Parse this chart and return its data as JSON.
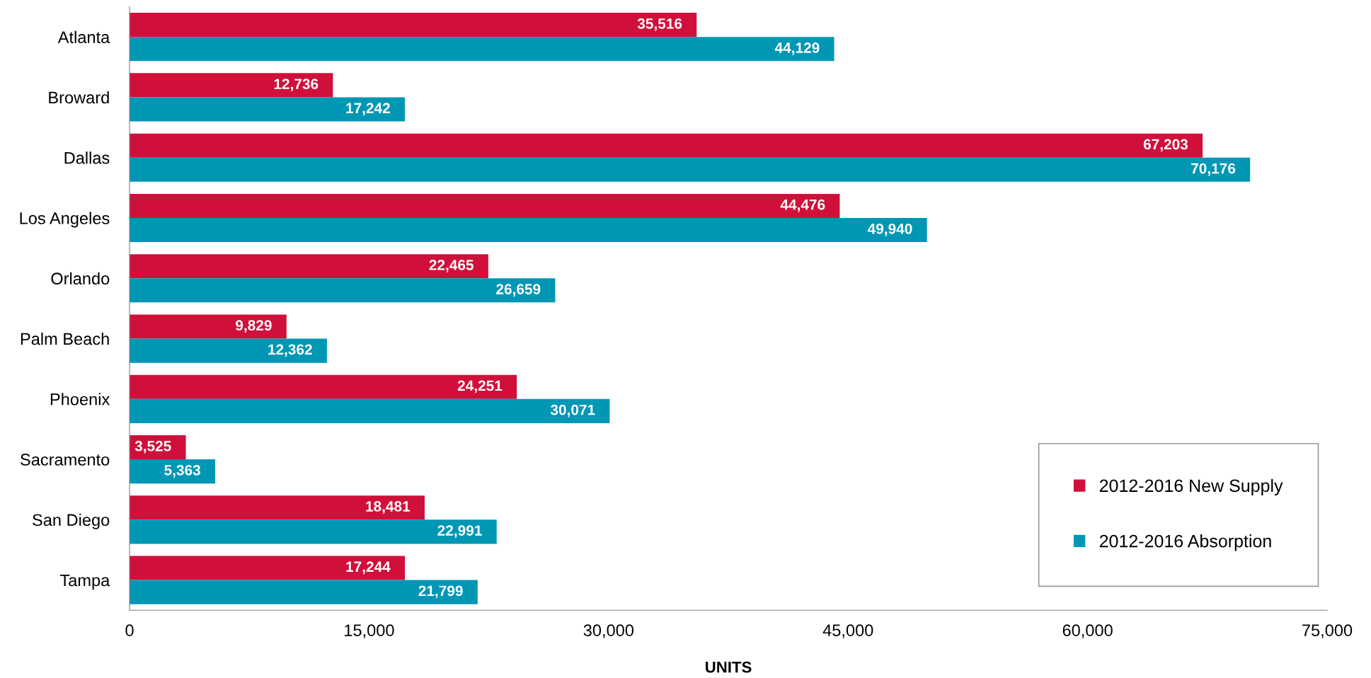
{
  "chart_data": {
    "type": "bar",
    "orientation": "horizontal",
    "xlabel": "UNITS",
    "categories": [
      "Atlanta",
      "Broward",
      "Dallas",
      "Los Angeles",
      "Orlando",
      "Palm Beach",
      "Phoenix",
      "Sacramento",
      "San Diego",
      "Tampa"
    ],
    "series": [
      {
        "name": "2012-2016 New Supply",
        "color": "#d0103a",
        "values": [
          35516,
          12736,
          67203,
          44476,
          22465,
          9829,
          24251,
          3525,
          18481,
          17244
        ],
        "value_labels": [
          "35,516",
          "12,736",
          "67,203",
          "44,476",
          "22,465",
          "9,829",
          "24,251",
          "3,525",
          "18,481",
          "17,244"
        ]
      },
      {
        "name": "2012-2016 Absorption",
        "color": "#0097b5",
        "values": [
          44129,
          17242,
          70176,
          49940,
          26659,
          12362,
          30071,
          5363,
          22991,
          21799
        ],
        "value_labels": [
          "44,129",
          "17,242",
          "70,176",
          "49,940",
          "26,659",
          "12,362",
          "30,071",
          "5,363",
          "22,991",
          "21,799"
        ]
      }
    ],
    "xlim": [
      0,
      75000
    ],
    "xticks": [
      {
        "value": 0,
        "label": "0"
      },
      {
        "value": 15000,
        "label": "15,000"
      },
      {
        "value": 30000,
        "label": "30,000"
      },
      {
        "value": 45000,
        "label": "45,000"
      },
      {
        "value": 60000,
        "label": "60,000"
      },
      {
        "value": 75000,
        "label": "75,000"
      }
    ],
    "grid": false,
    "legend": "lower right"
  }
}
